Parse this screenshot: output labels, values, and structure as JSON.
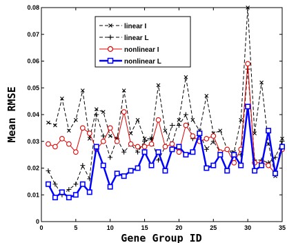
{
  "chart_data": {
    "type": "line",
    "xlabel": "Gene Group ID",
    "ylabel": "Mean RMSE",
    "xlim": [
      0,
      35
    ],
    "ylim": [
      0,
      0.08
    ],
    "xticks": [
      0,
      5,
      10,
      15,
      20,
      25,
      30,
      35
    ],
    "yticks": [
      0,
      0.01,
      0.02,
      0.03,
      0.04,
      0.05,
      0.06,
      0.07,
      0.08
    ],
    "ytick_labels": [
      "0",
      "0.01",
      "0.02",
      "0.03",
      "0.04",
      "0.05",
      "0.06",
      "0.07",
      "0.08"
    ],
    "grid": false,
    "legend_position": "top-left",
    "x": [
      1,
      2,
      3,
      4,
      5,
      6,
      7,
      8,
      9,
      10,
      11,
      12,
      13,
      14,
      15,
      16,
      17,
      18,
      19,
      20,
      21,
      22,
      23,
      24,
      25,
      26,
      27,
      28,
      29,
      30,
      31,
      32,
      33,
      34,
      35
    ],
    "series": [
      {
        "name": "linear I",
        "color": "#000000",
        "style": "dashed",
        "marker": "x",
        "values": [
          0.037,
          0.036,
          0.046,
          0.034,
          0.038,
          0.049,
          0.031,
          0.042,
          0.041,
          0.032,
          0.031,
          0.049,
          0.033,
          0.038,
          0.031,
          0.031,
          0.051,
          0.034,
          0.029,
          0.038,
          0.054,
          0.038,
          0.034,
          0.047,
          0.033,
          0.034,
          0.027,
          0.026,
          0.038,
          0.08,
          0.033,
          0.052,
          0.029,
          0.017,
          0.031
        ]
      },
      {
        "name": "linear L",
        "color": "#000000",
        "style": "dashed",
        "marker": "+",
        "values": [
          0.019,
          0.014,
          0.01,
          0.012,
          0.014,
          0.021,
          0.016,
          0.04,
          0.032,
          0.024,
          0.031,
          0.026,
          0.029,
          0.026,
          0.03,
          0.031,
          0.023,
          0.028,
          0.036,
          0.036,
          0.04,
          0.031,
          0.033,
          0.027,
          0.03,
          0.026,
          0.027,
          0.025,
          0.025,
          0.057,
          0.023,
          0.023,
          0.022,
          0.024,
          0.03
        ]
      },
      {
        "name": "nonlinear I",
        "color": "#e00000",
        "style": "solid",
        "marker": "o",
        "values": [
          0.029,
          0.028,
          0.031,
          0.029,
          0.026,
          0.035,
          0.033,
          0.027,
          0.03,
          0.035,
          0.03,
          0.041,
          0.029,
          0.028,
          0.028,
          0.029,
          0.038,
          0.028,
          0.029,
          0.026,
          0.036,
          0.032,
          0.03,
          0.031,
          0.032,
          0.026,
          0.027,
          0.022,
          0.027,
          0.059,
          0.022,
          0.022,
          0.021,
          0.018,
          0.027
        ]
      },
      {
        "name": "nonlinear L",
        "color": "#0000ff",
        "style": "solid",
        "marker": "s",
        "values": [
          0.014,
          0.009,
          0.011,
          0.009,
          0.01,
          0.014,
          0.011,
          0.028,
          0.021,
          0.013,
          0.018,
          0.017,
          0.019,
          0.02,
          0.026,
          0.021,
          0.026,
          0.019,
          0.027,
          0.028,
          0.025,
          0.026,
          0.033,
          0.02,
          0.021,
          0.025,
          0.019,
          0.025,
          0.021,
          0.043,
          0.019,
          0.021,
          0.034,
          0.018,
          0.028
        ]
      }
    ]
  }
}
